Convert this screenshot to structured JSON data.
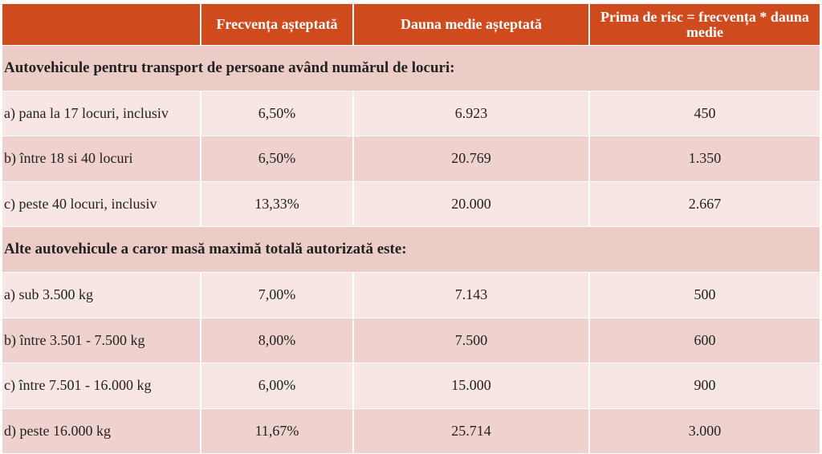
{
  "table": {
    "header": [
      "",
      "Frecvența așteptată",
      "Dauna medie așteptată",
      "Prima de risc  = frecvența * dauna medie"
    ],
    "sections": [
      {
        "title": "Autovehicule pentru transport de persoane având numărul de locuri:",
        "rows": [
          [
            "a) pana la 17 locuri, inclusiv",
            "6,50%",
            "6.923",
            "450"
          ],
          [
            "b) între 18 si 40 locuri",
            "6,50%",
            "20.769",
            "1.350"
          ],
          [
            "c) peste 40 locuri, inclusiv",
            "13,33%",
            "20.000",
            "2.667"
          ]
        ]
      },
      {
        "title": "Alte autovehicule a caror masă maximă totală autorizată este:",
        "rows": [
          [
            "a) sub 3.500 kg",
            "7,00%",
            "7.143",
            "500"
          ],
          [
            "b) între 3.501 - 7.500 kg",
            "8,00%",
            "7.500",
            "600"
          ],
          [
            "c) între 7.501 - 16.000 kg",
            "6,00%",
            "15.000",
            "900"
          ],
          [
            "d) peste 16.000 kg",
            "11,67%",
            "25.714",
            "3.000"
          ]
        ]
      }
    ]
  }
}
